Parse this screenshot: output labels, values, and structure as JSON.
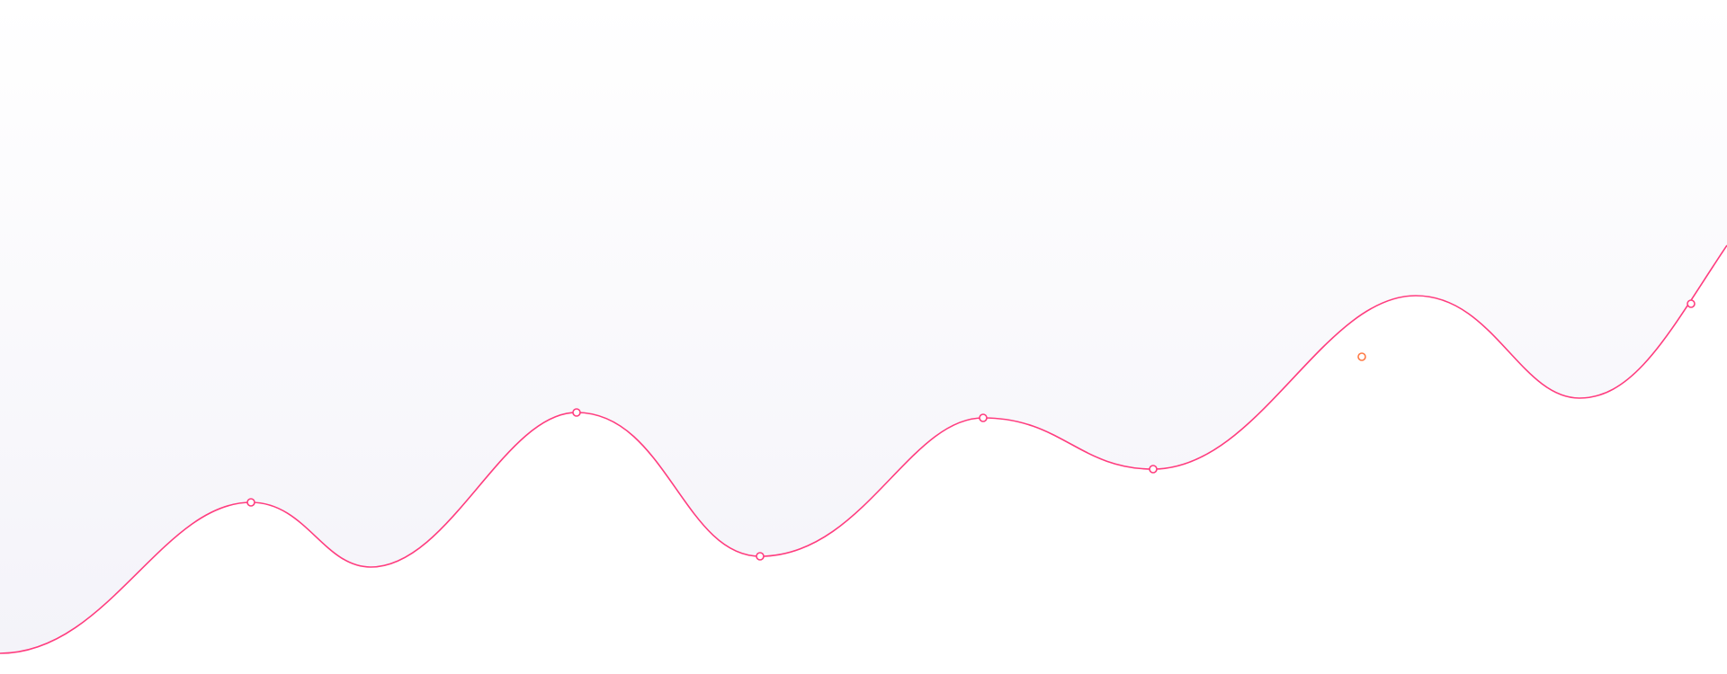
{
  "colors": {
    "background": "#ffffff",
    "fill_top": "#ffffff",
    "fill_bottom": "#f4f3f9",
    "line": "#ff3d7f",
    "marker_fill": "#ffffff",
    "marker_stroke": "#ff3d7f",
    "highlight_marker_stroke": "#ff7a45"
  },
  "icons": {
    "marker": "circle-marker-icon",
    "highlight_marker": "circle-marker-icon"
  }
}
